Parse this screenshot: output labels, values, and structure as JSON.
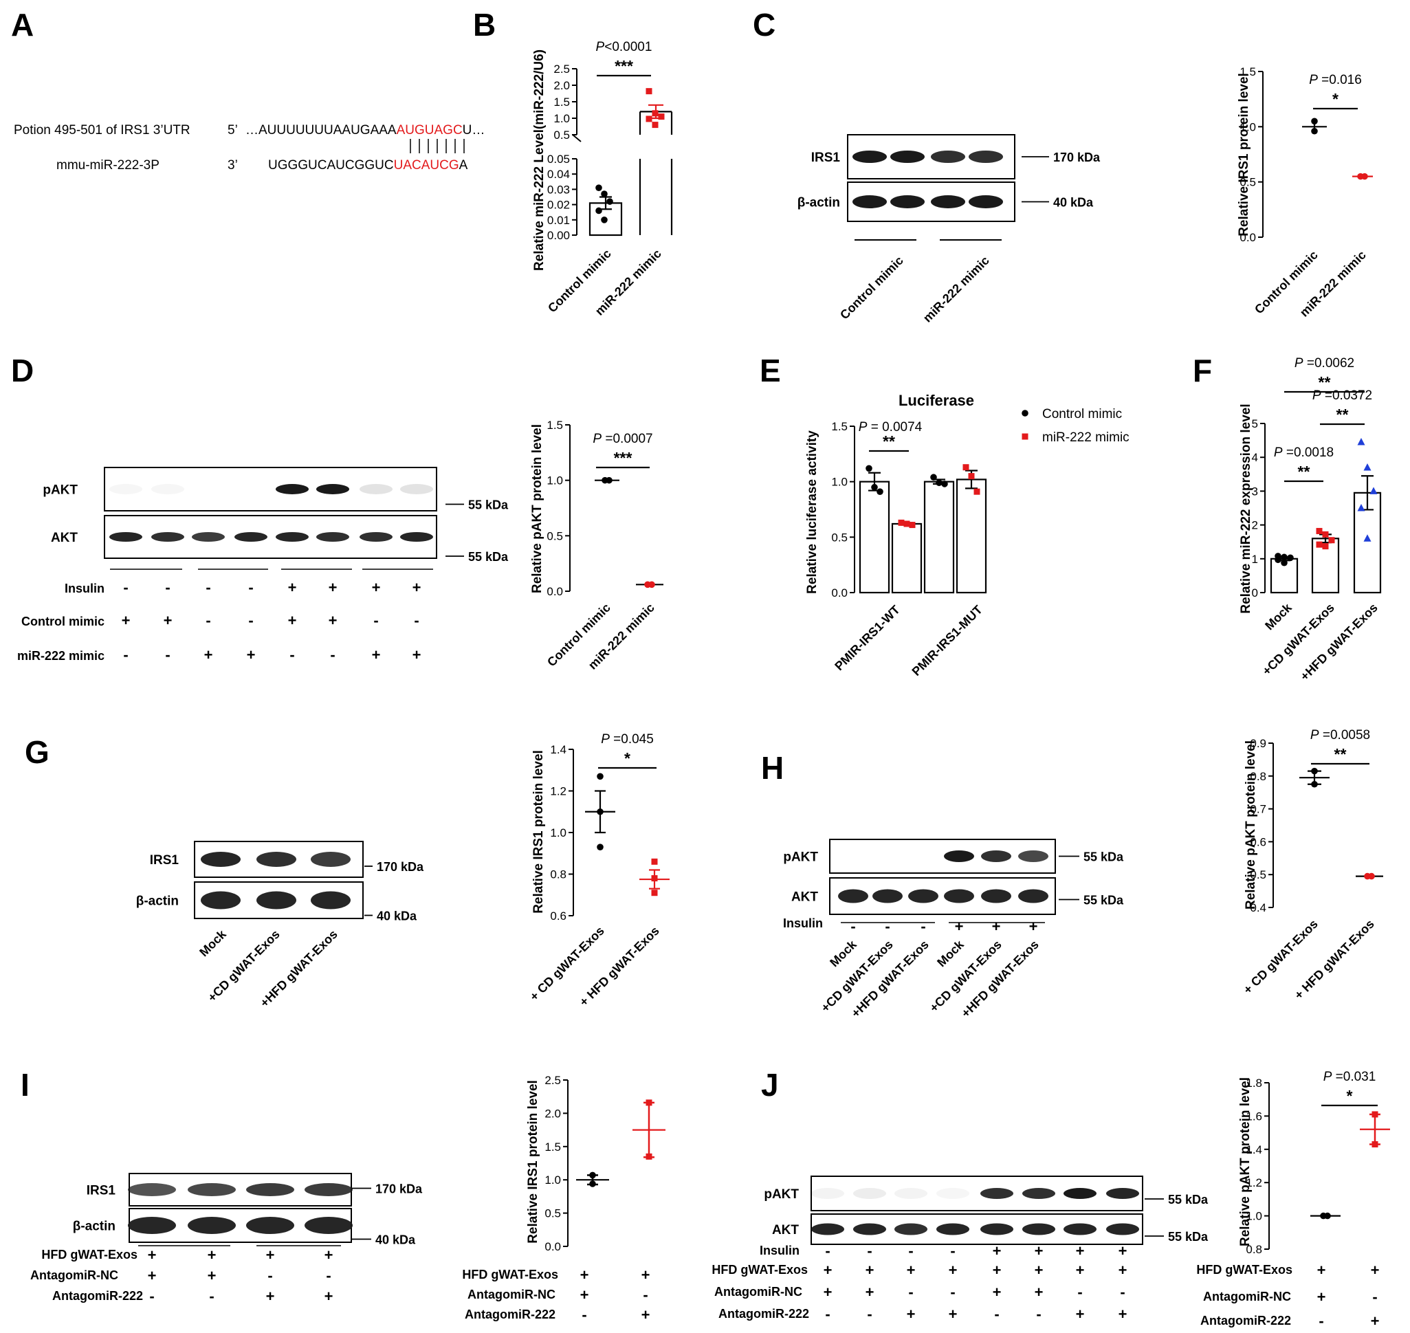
{
  "panel_letters": [
    "A",
    "B",
    "C",
    "D",
    "E",
    "F",
    "G",
    "H",
    "I",
    "J"
  ],
  "colors": {
    "black": "#000000",
    "red": "#e31a1c",
    "blue": "#1f3fd8",
    "band": "#1a1a1a"
  },
  "panel_a": {
    "row1_label": "Potion 495-501 of IRS1 3’UTR",
    "row1_prefix": "5’",
    "row1_black": "…AUUUUUUUAAUGAAA",
    "row1_red": "AUGUAGC",
    "row1_tail": "U…",
    "row2_label": "mmu-miR-222-3P",
    "row2_prefix": "3’",
    "row2_black": "UGGGUCAUCGGUC",
    "row2_red": "UACAUCG",
    "row2_tail": "A",
    "pairing_marks": "| | | | | | |"
  },
  "blots": {
    "c": {
      "rows": [
        "IRS1",
        "β-actin"
      ],
      "markers": [
        "170 kDa",
        "40 kDa"
      ],
      "groups": [
        "Control mimic",
        "miR-222 mimic"
      ]
    },
    "d": {
      "rows": [
        "pAKT",
        "AKT"
      ],
      "markers": [
        "55 kDa",
        "55 kDa"
      ],
      "conditions": [
        {
          "label": "Insulin",
          "signs": [
            "-",
            "-",
            "-",
            "-",
            "+",
            "+",
            "+",
            "+"
          ]
        },
        {
          "label": "Control mimic",
          "signs": [
            "+",
            "+",
            "-",
            "-",
            "+",
            "+",
            "-",
            "-"
          ]
        },
        {
          "label": "miR-222 mimic",
          "signs": [
            "-",
            "-",
            "+",
            "+",
            "-",
            "-",
            "+",
            "+"
          ]
        }
      ]
    },
    "g": {
      "rows": [
        "IRS1",
        "β-actin"
      ],
      "markers": [
        "170 kDa",
        "40 kDa"
      ],
      "lanes": [
        "Mock",
        "+CD gWAT-Exos",
        "+HFD gWAT-Exos"
      ]
    },
    "h": {
      "rows": [
        "pAKT",
        "AKT"
      ],
      "markers": [
        "55 kDa",
        "55 kDa"
      ],
      "insulin_label": "Insulin",
      "insulin_signs": [
        "-",
        "-",
        "-",
        "+",
        "+",
        "+"
      ],
      "lanes": [
        "Mock",
        "+CD gWAT-Exos",
        "+HFD gWAT-Exos",
        "Mock",
        "+CD gWAT-Exos",
        "+HFD gWAT-Exos"
      ]
    },
    "i": {
      "rows": [
        "IRS1",
        "β-actin"
      ],
      "markers": [
        "170 kDa",
        "40 kDa"
      ],
      "conditions": [
        {
          "label": "HFD gWAT-Exos",
          "signs": [
            "+",
            "+",
            "+",
            "+"
          ]
        },
        {
          "label": "AntagomiR-NC",
          "signs": [
            "+",
            "+",
            "-",
            "-"
          ]
        },
        {
          "label": "AntagomiR-222",
          "signs": [
            "-",
            "-",
            "+",
            "+"
          ]
        }
      ]
    },
    "j": {
      "rows": [
        "pAKT",
        "AKT"
      ],
      "markers": [
        "55 kDa",
        "55 kDa"
      ],
      "conditions": [
        {
          "label": "Insulin",
          "signs": [
            "-",
            "-",
            "-",
            "-",
            "+",
            "+",
            "+",
            "+"
          ]
        },
        {
          "label": "HFD gWAT-Exos",
          "signs": [
            "+",
            "+",
            "+",
            "+",
            "+",
            "+",
            "+",
            "+"
          ]
        },
        {
          "label": "AntagomiR-NC",
          "signs": [
            "+",
            "+",
            "-",
            "-",
            "+",
            "+",
            "-",
            "-"
          ]
        },
        {
          "label": "AntagomiR-222",
          "signs": [
            "-",
            "-",
            "+",
            "+",
            "-",
            "-",
            "+",
            "+"
          ]
        }
      ]
    }
  },
  "chart_data": [
    {
      "id": "B",
      "type": "bar",
      "ylabel": "Relative miR-222  Level(miR-222/U6)",
      "categories": [
        "Control mimic",
        "miR-222 mimic"
      ],
      "series": [
        {
          "values": [
            0.021,
            1.2
          ],
          "sem": [
            0.004,
            0.2
          ]
        }
      ],
      "points": [
        [
          0.031,
          0.027,
          0.022,
          0.016,
          0.01
        ],
        [
          1.82,
          1.15,
          1.05,
          0.98,
          0.8
        ]
      ],
      "y_axis_break": {
        "lower_ylim": [
          0,
          0.05
        ],
        "lower_ticks": [
          "0.00",
          "0.01",
          "0.02",
          "0.03",
          "0.04",
          "0.05"
        ],
        "upper_ylim": [
          0.5,
          2.5
        ],
        "upper_ticks": [
          "0.5",
          "1.0",
          "1.5",
          "2.0",
          "2.5"
        ]
      },
      "annotations": [
        "P<0.0001",
        "***"
      ]
    },
    {
      "id": "C",
      "type": "scatter",
      "ylabel": "Relative IRS1 protein level",
      "categories": [
        "Control mimic",
        "miR-222 mimic"
      ],
      "series": [
        {
          "values": [
            1.0,
            0.55
          ],
          "sem": [
            0.04,
            0.005
          ]
        }
      ],
      "points": [
        [
          1.05,
          0.96
        ],
        [
          0.55,
          0.55
        ]
      ],
      "ylim": [
        0,
        1.5
      ],
      "ticks": [
        "0.0",
        "0.5",
        "1.0",
        "1.5"
      ],
      "annotations": [
        "P =0.016",
        "*"
      ]
    },
    {
      "id": "D",
      "type": "scatter",
      "ylabel": "Relative pAKT protein level",
      "categories": [
        "Control mimic",
        "miR-222 mimic"
      ],
      "series": [
        {
          "values": [
            1.0,
            0.06
          ],
          "sem": [
            0.01,
            0.003
          ]
        }
      ],
      "points": [
        [
          1.0,
          1.0
        ],
        [
          0.06,
          0.06
        ]
      ],
      "ylim": [
        0,
        1.5
      ],
      "ticks": [
        "0.0",
        "0.5",
        "1.0",
        "1.5"
      ],
      "annotations": [
        "P =0.0007",
        "***"
      ]
    },
    {
      "id": "E",
      "type": "bar",
      "title": "Luciferase",
      "ylabel": "Relative luciferase activity",
      "categories": [
        "PMIR-IRS1-WT",
        "PMIR-IRS1-MUT"
      ],
      "series": [
        {
          "name": "Control mimic",
          "values": [
            1.0,
            1.0
          ],
          "sem": [
            0.08,
            0.02
          ],
          "points": [
            [
              1.12,
              0.95,
              0.91
            ],
            [
              1.04,
              0.99,
              0.98
            ]
          ]
        },
        {
          "name": "miR-222 mimic",
          "values": [
            0.62,
            1.02
          ],
          "sem": [
            0.01,
            0.08
          ],
          "points": [
            [
              0.63,
              0.62,
              0.61
            ],
            [
              1.13,
              1.05,
              0.91
            ]
          ]
        }
      ],
      "ylim": [
        0,
        1.5
      ],
      "ticks": [
        "0.0",
        "0.5",
        "1.0",
        "1.5"
      ],
      "annotations": [
        "P = 0.0074",
        "**"
      ],
      "legend": "top-right"
    },
    {
      "id": "F",
      "type": "bar",
      "ylabel": "Relative miR-222 expression level",
      "categories": [
        "Mock",
        "+CD gWAT-Exos",
        "+HFD gWAT-Exos"
      ],
      "series": [
        {
          "values": [
            1.0,
            1.6,
            2.95
          ],
          "sem": [
            0.05,
            0.12,
            0.5
          ]
        }
      ],
      "points": [
        [
          1.08,
          1.05,
          1.03,
          0.97,
          0.88
        ],
        [
          1.82,
          1.72,
          1.55,
          1.42,
          1.37
        ],
        [
          4.45,
          3.7,
          3.0,
          2.5,
          1.6
        ]
      ],
      "ylim": [
        0,
        5
      ],
      "ticks": [
        "0",
        "1",
        "2",
        "3",
        "4",
        "5"
      ],
      "annotations": [
        "P =0.0062",
        "**",
        "P =0.0372",
        "**",
        "P =0.0018",
        "**"
      ]
    },
    {
      "id": "G",
      "type": "scatter",
      "ylabel": "Relative IRS1 protein level",
      "categories": [
        "+ CD gWAT-Exos",
        "+ HFD gWAT-Exos"
      ],
      "series": [
        {
          "values": [
            1.1,
            0.775
          ],
          "sem": [
            0.1,
            0.045
          ]
        }
      ],
      "points": [
        [
          1.27,
          1.1,
          0.93
        ],
        [
          0.86,
          0.78,
          0.71
        ]
      ],
      "ylim": [
        0.6,
        1.4
      ],
      "ticks": [
        "0.6",
        "0.8",
        "1.0",
        "1.2",
        "1.4"
      ],
      "annotations": [
        "P =0.045",
        "*"
      ]
    },
    {
      "id": "H",
      "type": "scatter",
      "ylabel": "Relative pAKT protein level",
      "categories": [
        "+ CD gWAT-Exos",
        "+ HFD gWAT-Exos"
      ],
      "series": [
        {
          "values": [
            0.795,
            0.495
          ],
          "sem": [
            0.02,
            0.003
          ]
        }
      ],
      "points": [
        [
          0.815,
          0.775
        ],
        [
          0.495,
          0.495
        ]
      ],
      "ylim": [
        0.4,
        0.9
      ],
      "ticks": [
        "0.4",
        "0.5",
        "0.6",
        "0.7",
        "0.8",
        "0.9"
      ],
      "annotations": [
        "P =0.0058",
        "**"
      ]
    },
    {
      "id": "I",
      "type": "scatter",
      "ylabel": "Relative IRS1 protein level",
      "series": [
        {
          "values": [
            1.0,
            1.75
          ],
          "sem": [
            0.07,
            0.41
          ]
        }
      ],
      "points": [
        [
          1.07,
          0.94
        ],
        [
          2.16,
          1.35
        ]
      ],
      "ylim": [
        0,
        2.5
      ],
      "ticks": [
        "0.0",
        "0.5",
        "1.0",
        "1.5",
        "2.0",
        "2.5"
      ],
      "conditions": [
        {
          "label": "HFD gWAT-Exos",
          "signs": [
            "+",
            "+"
          ]
        },
        {
          "label": "AntagomiR-NC",
          "signs": [
            "+",
            "-"
          ]
        },
        {
          "label": "AntagomiR-222",
          "signs": [
            "-",
            "+"
          ]
        }
      ]
    },
    {
      "id": "J",
      "type": "scatter",
      "ylabel": "Relative pAKT protein level",
      "series": [
        {
          "values": [
            1.0,
            1.52
          ],
          "sem": [
            0.005,
            0.09
          ]
        }
      ],
      "points": [
        [
          1.0,
          1.0
        ],
        [
          1.61,
          1.43
        ]
      ],
      "ylim": [
        0.8,
        1.8
      ],
      "ticks": [
        "0.8",
        "1.0",
        "1.2",
        "1.4",
        "1.6",
        "1.8"
      ],
      "annotations": [
        "P =0.031",
        "*"
      ],
      "conditions": [
        {
          "label": "HFD gWAT-Exos",
          "signs": [
            "+",
            "+"
          ]
        },
        {
          "label": "AntagomiR-NC",
          "signs": [
            "+",
            "-"
          ]
        },
        {
          "label": "AntagomiR-222",
          "signs": [
            "-",
            "+"
          ]
        }
      ]
    }
  ]
}
